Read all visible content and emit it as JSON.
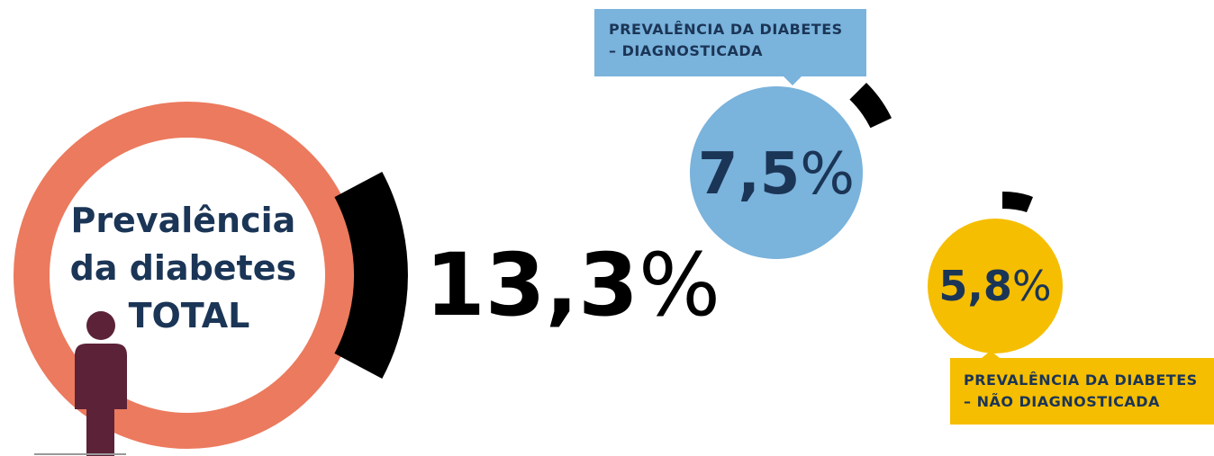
{
  "total": {
    "label_lines": [
      "Prevalência",
      "da diabetes",
      "TOTAL"
    ],
    "number": "13,3",
    "unit": "%"
  },
  "diagnosed": {
    "label_lines": [
      "PREVALÊNCIA DA DIABETES",
      "– DIAGNOSTICADA"
    ],
    "number": "7,5",
    "unit": "%"
  },
  "undiagnosed": {
    "label_lines": [
      "PREVALÊNCIA DA DIABETES",
      "– NÃO DIAGNOSTICADA"
    ],
    "number": "5,8",
    "unit": "%"
  }
}
